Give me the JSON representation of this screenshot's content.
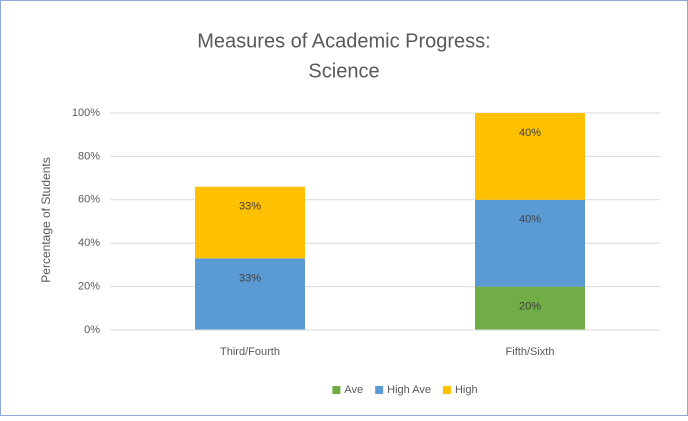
{
  "chart_data": {
    "type": "stacked_bar",
    "title": [
      "Measures of Academic Progress:",
      "Science"
    ],
    "y_label": "Percentage of Students",
    "categories": [
      "Third/Fourth",
      "Fifth/Sixth"
    ],
    "series": [
      {
        "name": "Ave",
        "color": "#70ad47",
        "values": [
          null,
          20
        ],
        "value_labels": [
          null,
          "20%"
        ]
      },
      {
        "name": "High Ave",
        "color": "#5b9bd5",
        "values": [
          33,
          40
        ],
        "value_labels": [
          "33%",
          "40%"
        ]
      },
      {
        "name": "High",
        "color": "#ffc000",
        "values": [
          33,
          40
        ],
        "value_labels": [
          "33%",
          "40%"
        ]
      }
    ],
    "ylim": [
      0,
      100
    ],
    "yticks": [
      {
        "value": 0,
        "label": "0%"
      },
      {
        "value": 20,
        "label": "20%"
      },
      {
        "value": 40,
        "label": "40%"
      },
      {
        "value": 60,
        "label": "60%"
      },
      {
        "value": 80,
        "label": "80%"
      },
      {
        "value": 100,
        "label": "100%"
      }
    ],
    "grid": true,
    "legend": "bottom"
  }
}
